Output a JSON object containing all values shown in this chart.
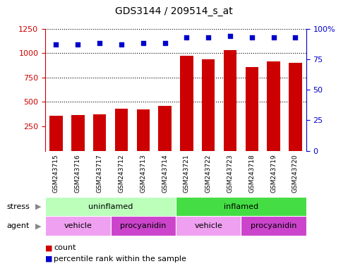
{
  "title": "GDS3144 / 209514_s_at",
  "samples": [
    "GSM243715",
    "GSM243716",
    "GSM243717",
    "GSM243712",
    "GSM243713",
    "GSM243714",
    "GSM243721",
    "GSM243722",
    "GSM243723",
    "GSM243718",
    "GSM243719",
    "GSM243720"
  ],
  "counts": [
    360,
    365,
    370,
    430,
    420,
    460,
    970,
    940,
    1030,
    855,
    915,
    900
  ],
  "percentile_ranks": [
    87,
    87,
    88,
    87,
    88,
    88,
    93,
    93,
    94,
    93,
    93,
    93
  ],
  "bar_color": "#cc0000",
  "dot_color": "#0000cc",
  "left_ylim": [
    0,
    1250
  ],
  "left_yticks": [
    250,
    500,
    750,
    1000,
    1250
  ],
  "right_ylim": [
    0,
    100
  ],
  "right_yticks": [
    0,
    25,
    50,
    75,
    100
  ],
  "stress_groups": [
    {
      "label": "uninflamed",
      "start": 0,
      "end": 6,
      "color": "#bbffbb"
    },
    {
      "label": "inflamed",
      "start": 6,
      "end": 12,
      "color": "#44dd44"
    }
  ],
  "agent_groups": [
    {
      "label": "vehicle",
      "start": 0,
      "end": 3,
      "color": "#f0a0f0"
    },
    {
      "label": "procyanidin",
      "start": 3,
      "end": 6,
      "color": "#cc44cc"
    },
    {
      "label": "vehicle",
      "start": 6,
      "end": 9,
      "color": "#f0a0f0"
    },
    {
      "label": "procyanidin",
      "start": 9,
      "end": 12,
      "color": "#cc44cc"
    }
  ],
  "stress_label": "stress",
  "agent_label": "agent",
  "legend_count_label": "count",
  "legend_percentile_label": "percentile rank within the sample",
  "left_tick_color": "#cc0000",
  "right_tick_color": "#0000cc",
  "sample_label_bg": "#cccccc",
  "grid_lines": [
    500,
    750,
    1000
  ],
  "dotted_line_1250": 1250
}
